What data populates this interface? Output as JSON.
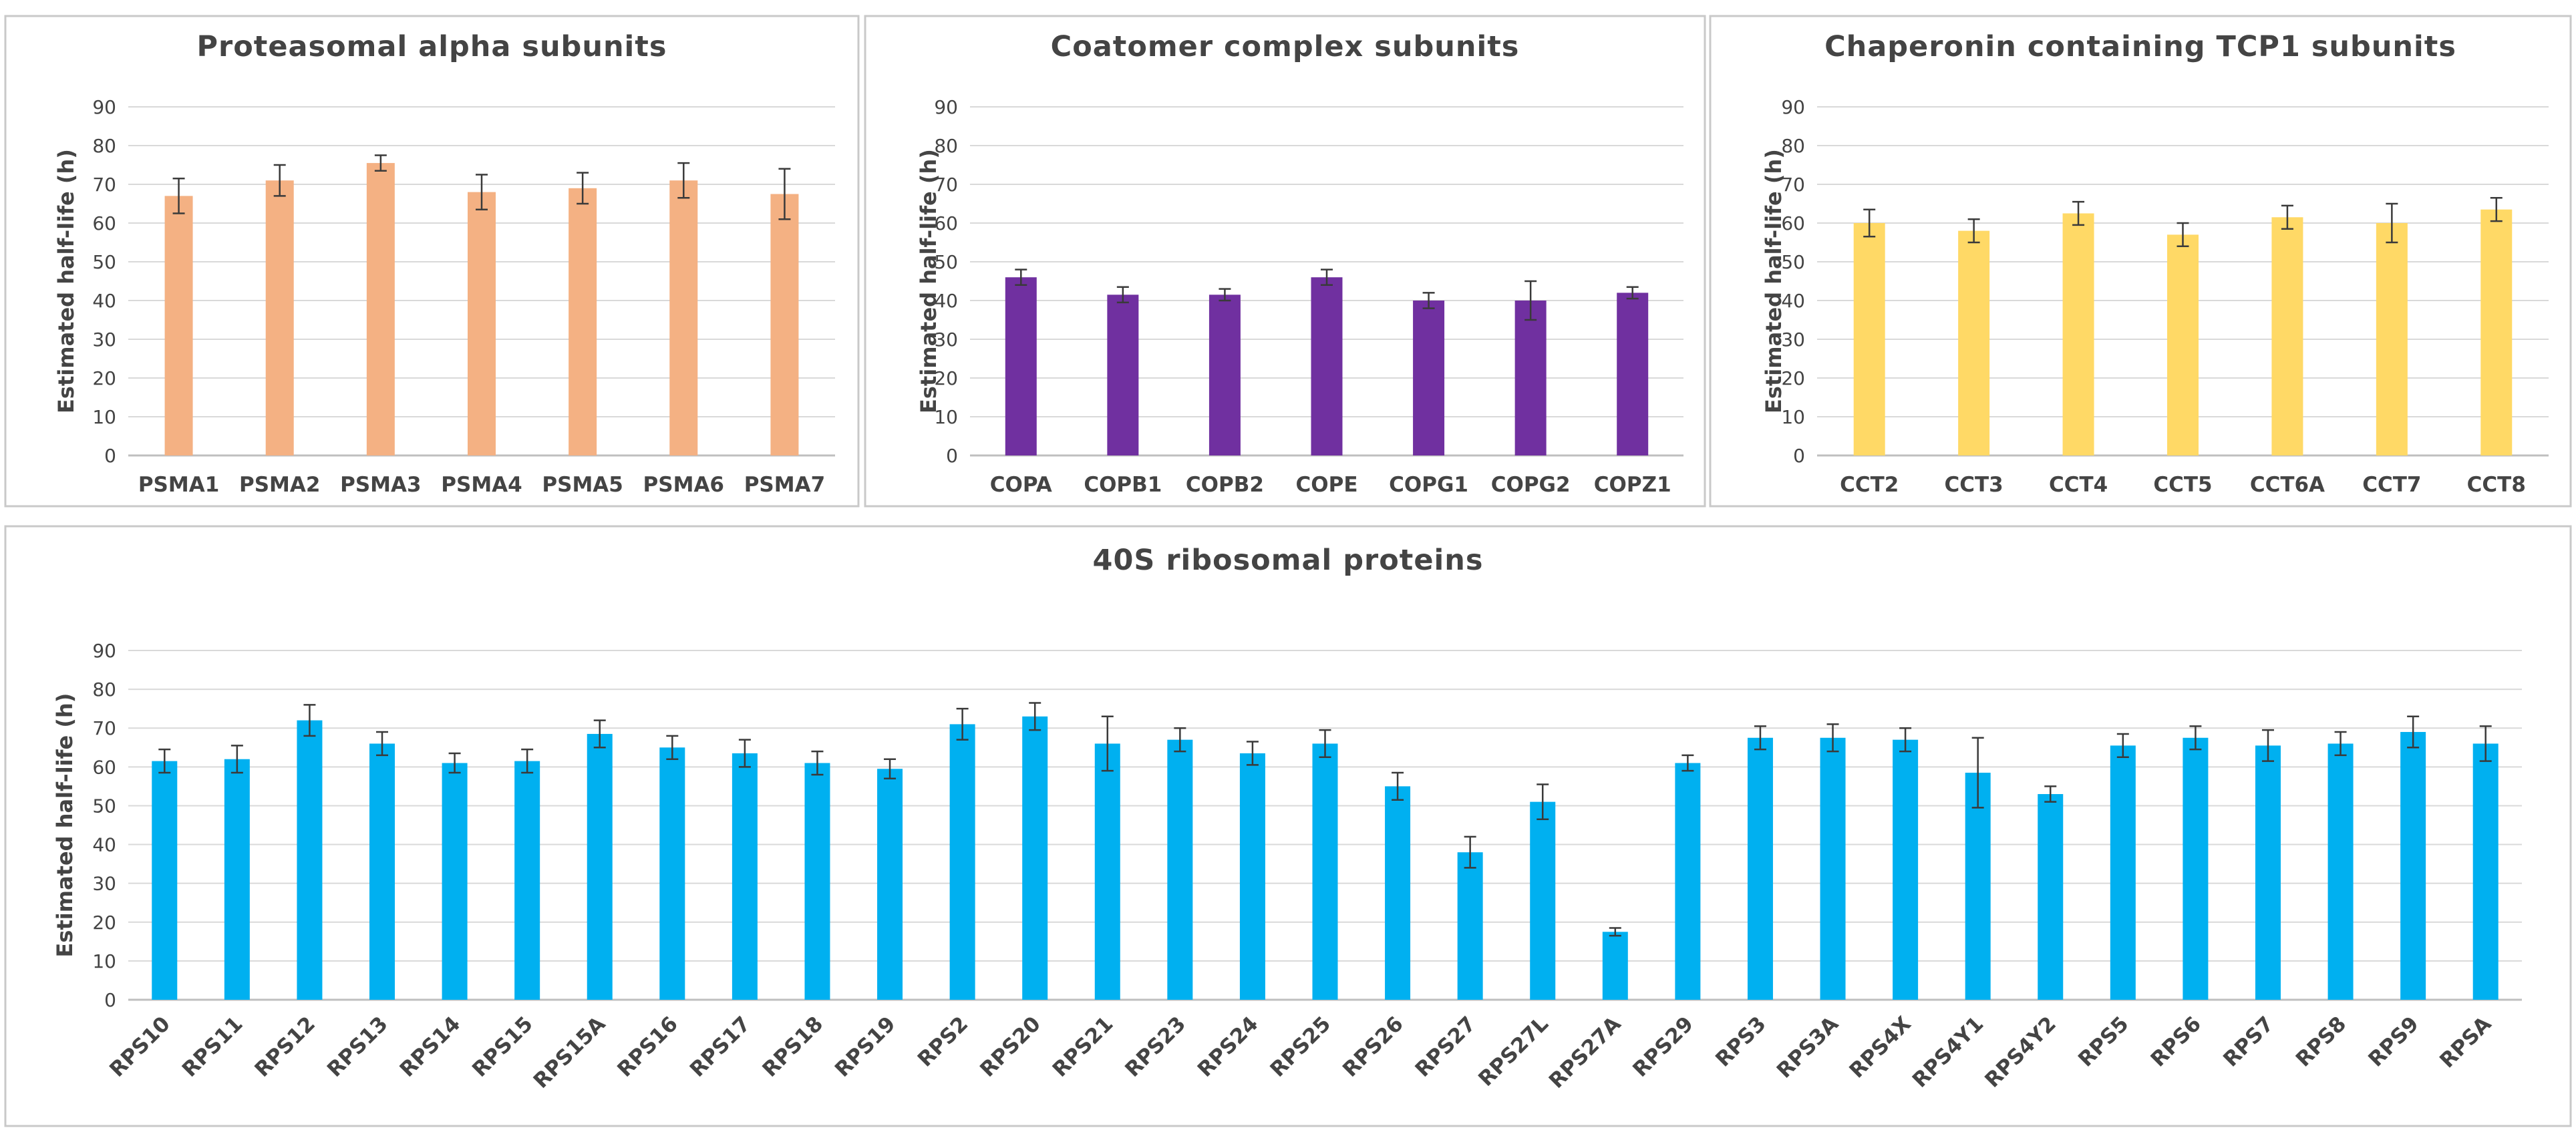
{
  "chart_data": [
    {
      "type": "bar",
      "title": "Proteasomal alpha subunits",
      "xlabel": "",
      "ylabel": "Estimated half-life (h)",
      "ylim": [
        0,
        90
      ],
      "yticks": [
        0,
        10,
        20,
        30,
        40,
        50,
        60,
        70,
        80,
        90
      ],
      "grid": true,
      "color": "#F4B183",
      "categories": [
        "PSMA1",
        "PSMA2",
        "PSMA3",
        "PSMA4",
        "PSMA5",
        "PSMA6",
        "PSMA7"
      ],
      "values": [
        67,
        71,
        75.5,
        68,
        69,
        71,
        67.5
      ],
      "errors": [
        4.5,
        4,
        2,
        4.5,
        4,
        4.5,
        6.5
      ]
    },
    {
      "type": "bar",
      "title": "Coatomer complex subunits",
      "xlabel": "",
      "ylabel": "Estimated half-life (h)",
      "ylim": [
        0,
        90
      ],
      "yticks": [
        0,
        10,
        20,
        30,
        40,
        50,
        60,
        70,
        80,
        90
      ],
      "grid": true,
      "color": "#7030A0",
      "categories": [
        "COPA",
        "COPB1",
        "COPB2",
        "COPE",
        "COPG1",
        "COPG2",
        "COPZ1"
      ],
      "values": [
        46,
        41.5,
        41.5,
        46,
        40,
        40,
        42
      ],
      "errors": [
        2,
        2,
        1.5,
        2,
        2,
        5,
        1.5
      ]
    },
    {
      "type": "bar",
      "title": "Chaperonin containing TCP1 subunits",
      "xlabel": "",
      "ylabel": "Estimated half-life (h)",
      "ylim": [
        0,
        90
      ],
      "yticks": [
        0,
        10,
        20,
        30,
        40,
        50,
        60,
        70,
        80,
        90
      ],
      "grid": true,
      "color": "#FFD966",
      "categories": [
        "CCT2",
        "CCT3",
        "CCT4",
        "CCT5",
        "CCT6A",
        "CCT7",
        "CCT8"
      ],
      "values": [
        60,
        58,
        62.5,
        57,
        61.5,
        60,
        63.5
      ],
      "errors": [
        3.5,
        3,
        3,
        3,
        3,
        5,
        3
      ]
    },
    {
      "type": "bar",
      "title": "40S ribosomal proteins",
      "xlabel": "",
      "ylabel": "Estimated half-life (h)",
      "ylim": [
        0,
        90
      ],
      "yticks": [
        0,
        10,
        20,
        30,
        40,
        50,
        60,
        70,
        80,
        90
      ],
      "grid": true,
      "color": "#00B0F0",
      "categories": [
        "RPS10",
        "RPS11",
        "RPS12",
        "RPS13",
        "RPS14",
        "RPS15",
        "RPS15A",
        "RPS16",
        "RPS17",
        "RPS18",
        "RPS19",
        "RPS2",
        "RPS20",
        "RPS21",
        "RPS23",
        "RPS24",
        "RPS25",
        "RPS26",
        "RPS27",
        "RPS27L",
        "RPS27A",
        "RPS29",
        "RPS3",
        "RPS3A",
        "RPS4X",
        "RPS4Y1",
        "RPS4Y2",
        "RPS5",
        "RPS6",
        "RPS7",
        "RPS8",
        "RPS9",
        "RPSA"
      ],
      "values": [
        61.5,
        62,
        72,
        66,
        61,
        61.5,
        68.5,
        65,
        63.5,
        61,
        59.5,
        71,
        73,
        66,
        67,
        63.5,
        66,
        55,
        38,
        51,
        17.5,
        61,
        67.5,
        67.5,
        67,
        58.5,
        53,
        65.5,
        67.5,
        65.5,
        66,
        69,
        66
      ],
      "errors": [
        3,
        3.5,
        4,
        3,
        2.5,
        3,
        3.5,
        3,
        3.5,
        3,
        2.5,
        4,
        3.5,
        7,
        3,
        3,
        3.5,
        3.5,
        4,
        4.5,
        1,
        2,
        3,
        3.5,
        3,
        9,
        2,
        3,
        3,
        4,
        3,
        4,
        4.5
      ]
    }
  ]
}
